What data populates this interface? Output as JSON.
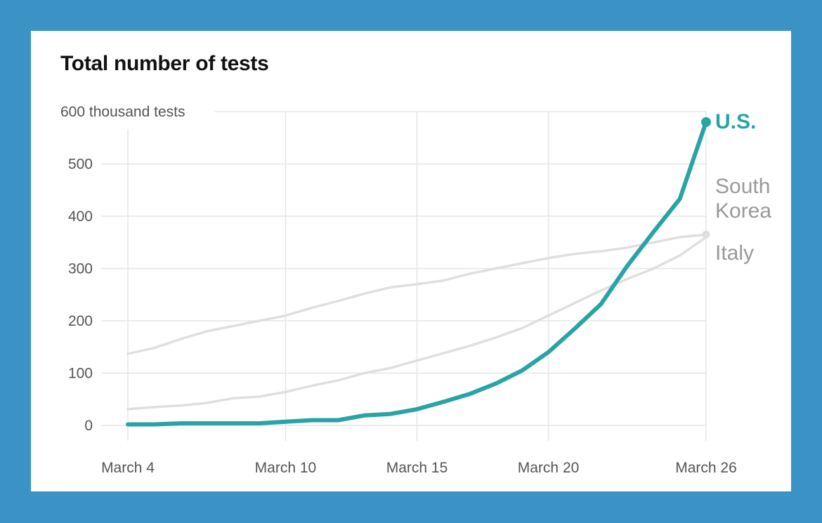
{
  "chart_data": {
    "type": "line",
    "title": "Total number of tests",
    "ylabel_unit": "thousand tests",
    "ylim": [
      0,
      600
    ],
    "yticks": [
      0,
      100,
      200,
      300,
      400,
      500,
      600
    ],
    "ytick_labels": [
      "0",
      "100",
      "200",
      "300",
      "400",
      "500",
      "600 thousand tests"
    ],
    "xlim": [
      4,
      26
    ],
    "xticks": [
      4,
      10,
      15,
      20,
      26
    ],
    "xtick_labels": [
      "March 4",
      "March 10",
      "March 15",
      "March 20",
      "March 26"
    ],
    "grid": true,
    "legend": "direct labels at line ends (right)",
    "series": [
      {
        "name": "South Korea",
        "label_lines": [
          "South",
          "Korea"
        ],
        "color": "#e3dede",
        "label_color": "#999999",
        "x": [
          4,
          5,
          6,
          7,
          8,
          9,
          10,
          11,
          12,
          13,
          14,
          15,
          16,
          17,
          18,
          19,
          20,
          21,
          22,
          23,
          24,
          25,
          26
        ],
        "y": [
          137,
          148,
          165,
          180,
          190,
          200,
          210,
          225,
          238,
          252,
          264,
          270,
          277,
          290,
          300,
          310,
          320,
          328,
          333,
          340,
          350,
          360,
          365
        ]
      },
      {
        "name": "Italy",
        "label_lines": [
          "Italy"
        ],
        "color": "#e3dede",
        "label_color": "#999999",
        "x": [
          4,
          5,
          6,
          7,
          8,
          9,
          10,
          11,
          12,
          13,
          14,
          15,
          16,
          17,
          18,
          19,
          20,
          21,
          22,
          23,
          24,
          25,
          26
        ],
        "y": [
          31,
          35,
          38,
          43,
          52,
          55,
          64,
          76,
          86,
          100,
          110,
          124,
          138,
          152,
          168,
          186,
          210,
          234,
          258,
          280,
          300,
          325,
          360
        ]
      },
      {
        "name": "U.S.",
        "label_lines": [
          "U.S."
        ],
        "color": "#2aa3a6",
        "label_color": "#2aa3a6",
        "x": [
          4,
          5,
          6,
          7,
          8,
          9,
          10,
          11,
          12,
          13,
          14,
          15,
          16,
          17,
          18,
          19,
          20,
          21,
          22,
          23,
          24,
          25,
          26
        ],
        "y": [
          2,
          2,
          4,
          4,
          4,
          4,
          7,
          10,
          10,
          19,
          22,
          31,
          45,
          60,
          80,
          105,
          140,
          185,
          232,
          305,
          370,
          433,
          580
        ]
      }
    ]
  }
}
